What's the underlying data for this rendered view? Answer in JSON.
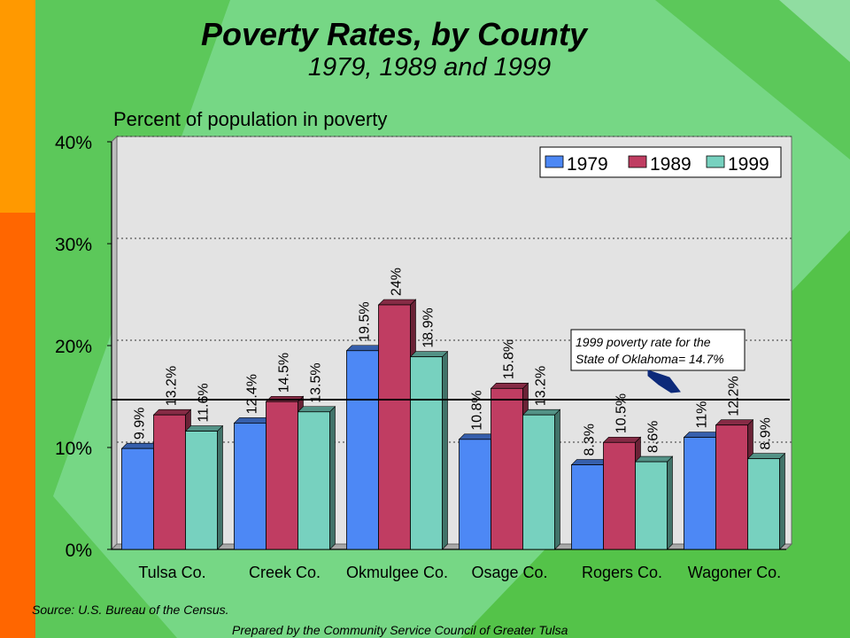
{
  "colors": {
    "background": "#5cc85a",
    "orange": "#ff9900",
    "red_orange": "#ff6600",
    "plot_bg": "#e3e3e3",
    "series": [
      "#4d88f5",
      "#c03d62",
      "#77d1bf"
    ]
  },
  "chart_data": {
    "type": "bar",
    "title": "Poverty Rates, by County",
    "subtitle": "1979, 1989 and 1999",
    "ylabel": "Percent of population in poverty",
    "categories": [
      "Tulsa Co.",
      "Creek Co.",
      "Okmulgee Co.",
      "Osage Co.",
      "Rogers Co.",
      "Wagoner Co."
    ],
    "series": [
      {
        "name": "1979",
        "values": [
          9.9,
          12.4,
          19.5,
          10.8,
          8.3,
          11
        ],
        "labels": [
          "9.9%",
          "12.4%",
          "19.5%",
          "10.8%",
          "8.3%",
          "11%"
        ]
      },
      {
        "name": "1989",
        "values": [
          13.2,
          14.5,
          24,
          15.8,
          10.5,
          12.2
        ],
        "labels": [
          "13.2%",
          "14.5%",
          "24%",
          "15.8%",
          "10.5%",
          "12.2%"
        ]
      },
      {
        "name": "1999",
        "values": [
          11.6,
          13.5,
          18.9,
          13.2,
          8.6,
          8.9
        ],
        "labels": [
          "11.6%",
          "13.5%",
          "18.9%",
          "13.2%",
          "8.6%",
          "8.9%"
        ]
      }
    ],
    "ylim": [
      0,
      40
    ],
    "yticks": [
      0,
      10,
      20,
      30,
      40
    ],
    "ytick_labels": [
      "0%",
      "10%",
      "20%",
      "30%",
      "40%"
    ],
    "grid": true,
    "legend_position": "top-right",
    "reference_line": {
      "value": 14.7,
      "label_line1": "1999 poverty rate for the",
      "label_line2": "State of Oklahoma= 14.7%"
    }
  },
  "footer": {
    "source": "Source:  U.S. Bureau of the Census.",
    "credit": "Prepared by the Community Service Council of Greater Tulsa"
  }
}
